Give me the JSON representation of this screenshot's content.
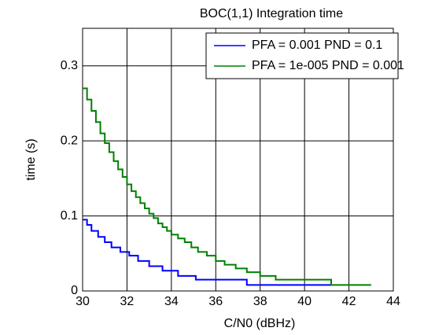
{
  "chart_data": {
    "type": "stairs",
    "title": "BOC(1,1) Integration time",
    "xlabel": "C/N0  (dBHz)",
    "ylabel": "time  (s)",
    "xlim": [
      30,
      44
    ],
    "xticks": [
      30,
      32,
      34,
      36,
      38,
      40,
      42,
      44
    ],
    "ylim": [
      0,
      0.35
    ],
    "yticks": [
      0,
      0.1,
      0.2,
      0.3
    ],
    "grid": true,
    "legend": "upper right",
    "series": [
      {
        "name": "PFA = 0.001  PND = 0.1",
        "color": "#0000ff",
        "x": [
          30,
          30.2,
          30.4,
          30.7,
          31.0,
          31.3,
          31.7,
          32.1,
          32.5,
          33.0,
          33.6,
          34.3,
          35.1,
          37.4,
          41.2
        ],
        "values": [
          0.095,
          0.088,
          0.08,
          0.072,
          0.065,
          0.058,
          0.052,
          0.047,
          0.04,
          0.033,
          0.027,
          0.02,
          0.015,
          0.008,
          0.008
        ]
      },
      {
        "name": "PFA = 1e-005  PND = 0.001",
        "color": "#008000",
        "x": [
          30,
          30.2,
          30.4,
          30.6,
          30.8,
          31.0,
          31.2,
          31.4,
          31.6,
          31.8,
          32.0,
          32.2,
          32.4,
          32.6,
          32.8,
          33.0,
          33.2,
          33.4,
          33.6,
          33.8,
          34.0,
          34.3,
          34.6,
          34.9,
          35.2,
          35.6,
          36.0,
          36.4,
          36.9,
          37.4,
          38.0,
          38.7,
          41.2,
          43
        ],
        "values": [
          0.27,
          0.255,
          0.24,
          0.225,
          0.21,
          0.197,
          0.185,
          0.173,
          0.162,
          0.152,
          0.142,
          0.133,
          0.125,
          0.117,
          0.11,
          0.103,
          0.097,
          0.09,
          0.085,
          0.08,
          0.075,
          0.07,
          0.065,
          0.058,
          0.052,
          0.047,
          0.04,
          0.035,
          0.03,
          0.025,
          0.02,
          0.015,
          0.008,
          0.008
        ]
      }
    ]
  }
}
